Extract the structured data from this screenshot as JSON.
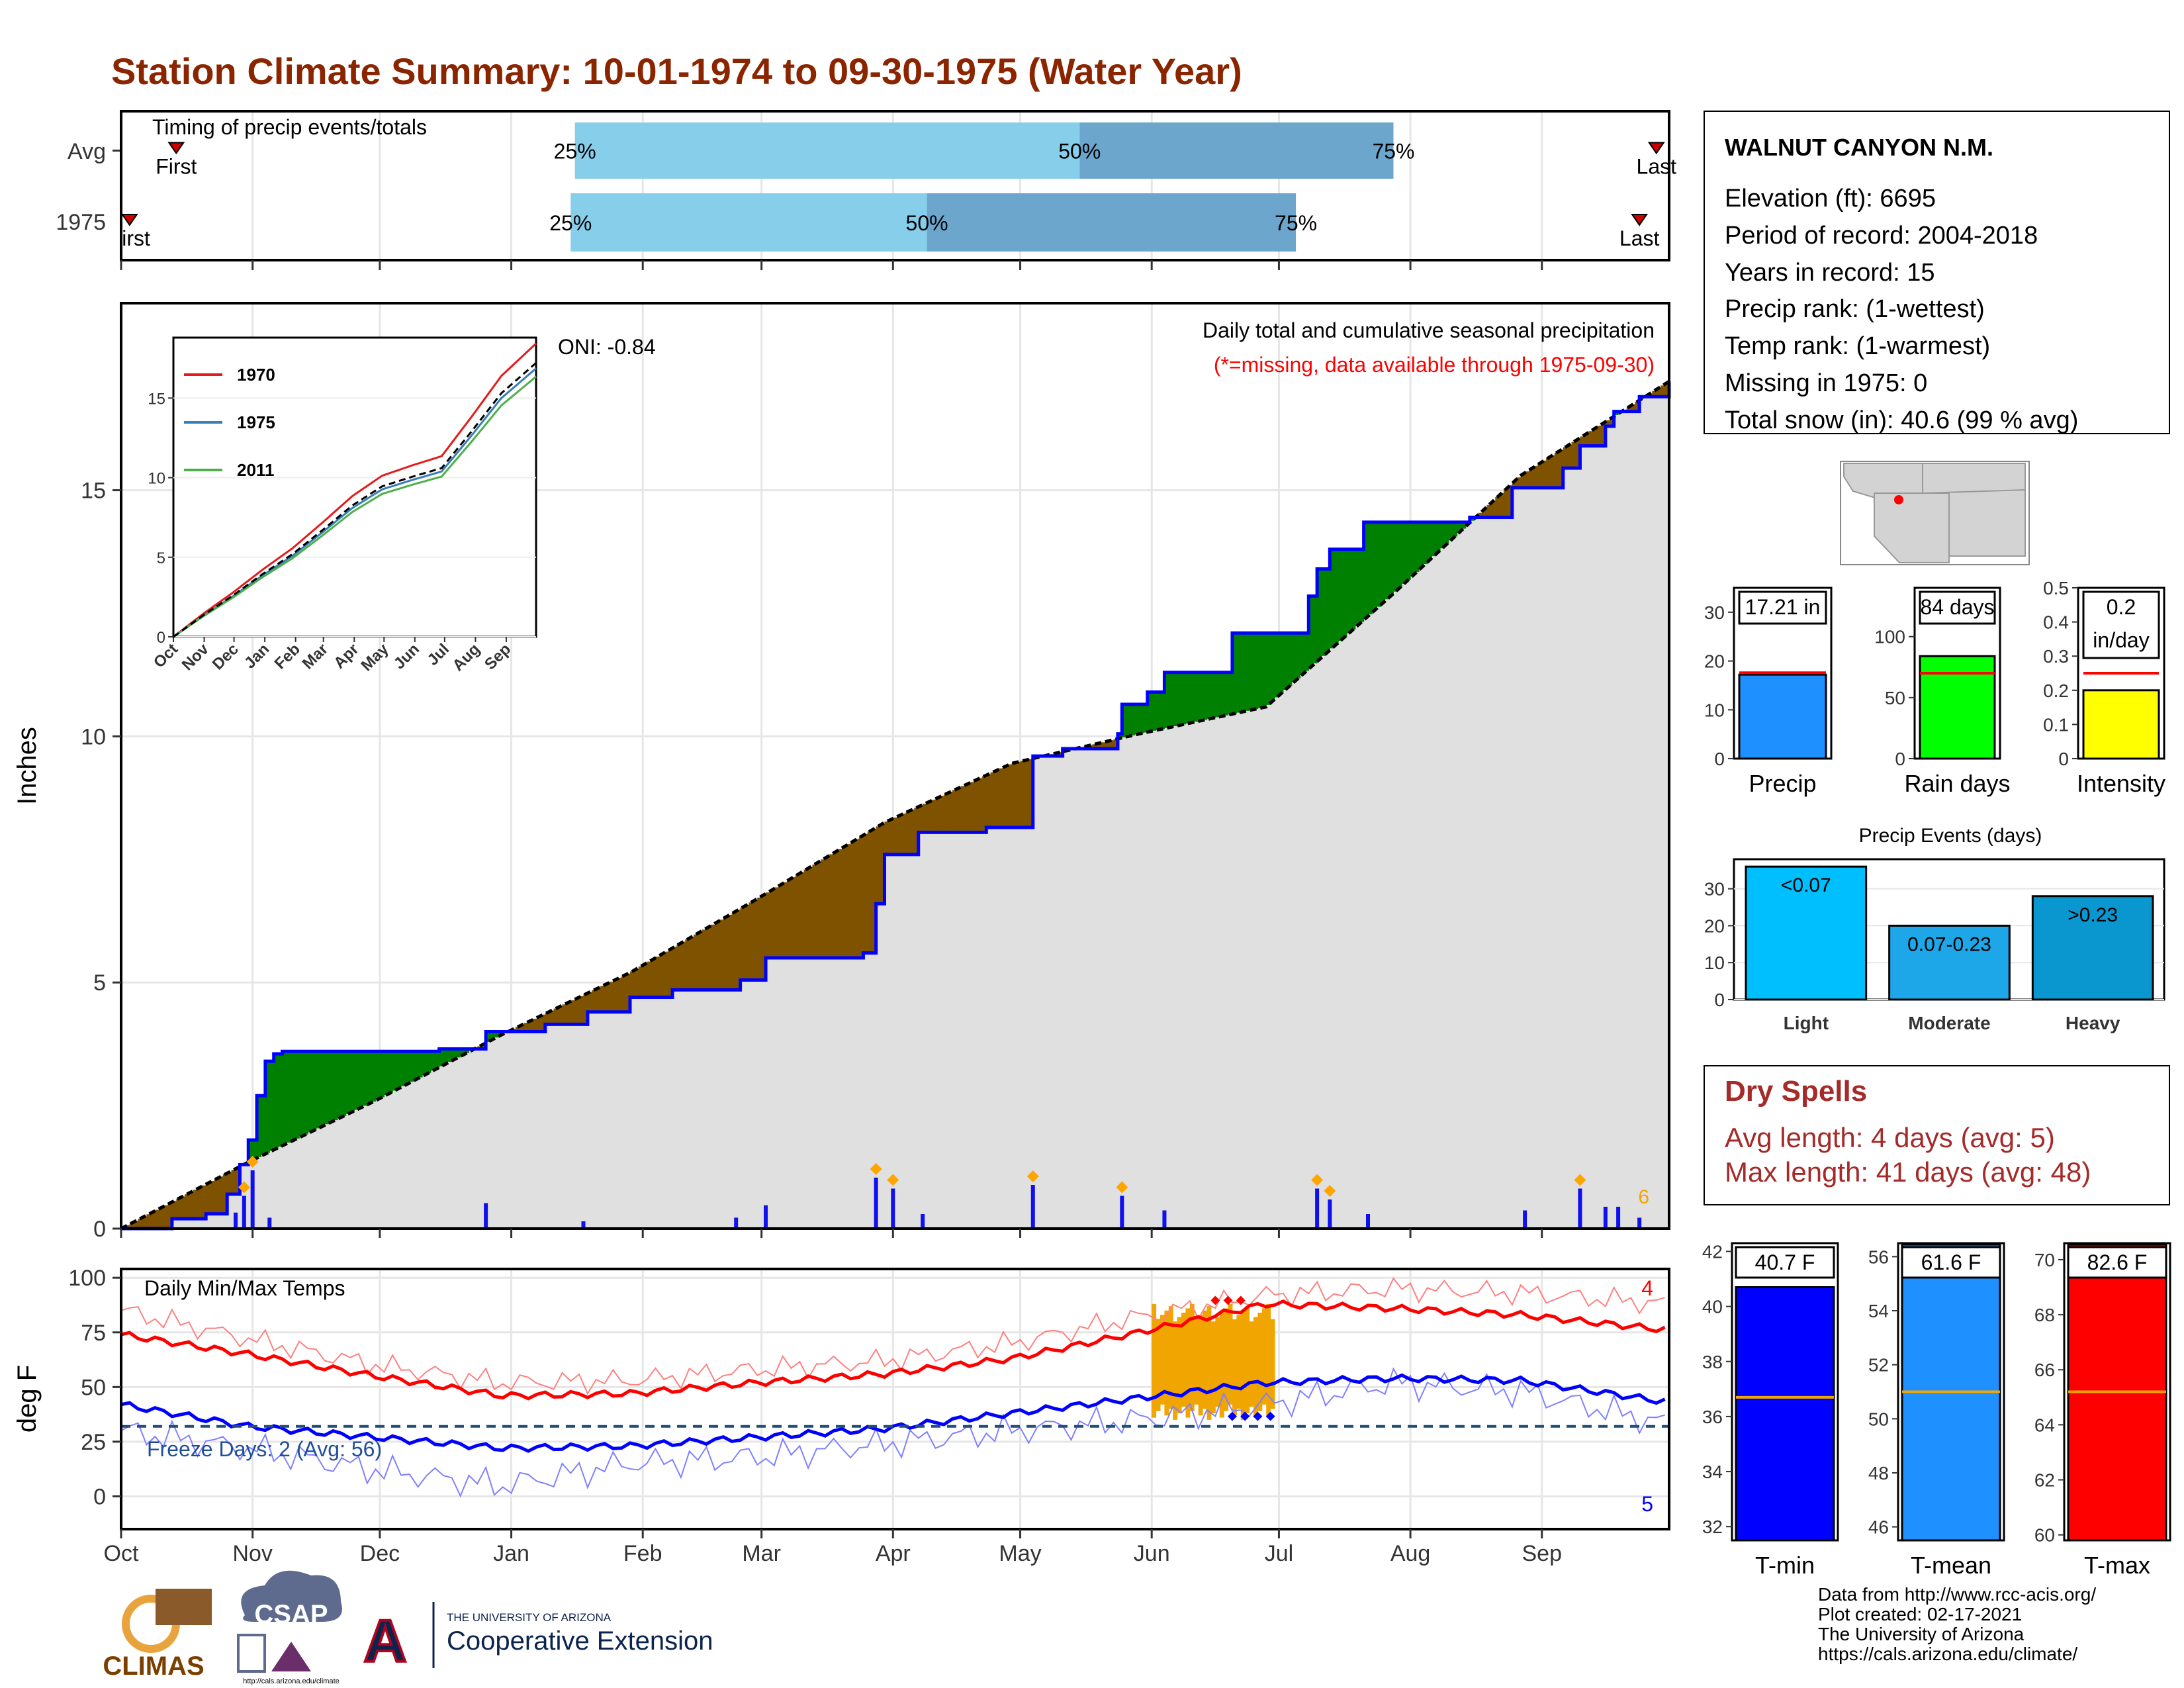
{
  "title": "Station Climate Summary: 10-01-1974 to 09-30-1975 (Water Year)",
  "colors": {
    "title": "#8B2500",
    "quart_light": "#87CEEB",
    "quart_dark": "#6CA6CD",
    "cum_fill": "#E0E0E0",
    "above_avg": "#008000",
    "below_avg": "#7F5200",
    "cum_line": "#0000FF",
    "tmax": "#FF0000",
    "tmin": "#0000FF",
    "missing_text": "#FF0000",
    "dry_spell_text": "#A52A2A",
    "hot_fill": "#F0A500"
  },
  "timing": {
    "label": "Timing of precip events/totals",
    "rows": [
      {
        "label": "Avg",
        "first_label": "First",
        "last_label": "Last",
        "first_day": 13,
        "last_day": 362,
        "q25_day": 107,
        "q50_day": 226,
        "q75_day": 300,
        "q25_label": "25%",
        "q50_label": "50%",
        "q75_label": "75%"
      },
      {
        "label": "1975",
        "first_label": "First",
        "last_label": "Last",
        "first_day": 2,
        "last_day": 358,
        "q25_day": 106,
        "q50_day": 190,
        "q75_day": 277,
        "q25_label": "25%",
        "q50_label": "50%",
        "q75_label": "75%"
      }
    ]
  },
  "precip_panel": {
    "ylabel": "Inches",
    "yticks": [
      0,
      5,
      10,
      15
    ],
    "oni": "ONI: -0.84",
    "subtitle": "Daily total and cumulative seasonal precipitation",
    "missing_note": "(*=missing, data available through 1975-09-30)",
    "count_label": "6",
    "inset": {
      "yticks": [
        0,
        5,
        10,
        15
      ],
      "months": [
        "Oct",
        "Nov",
        "Dec",
        "Jan",
        "Feb",
        "Mar",
        "Apr",
        "May",
        "Jun",
        "Jul",
        "Aug",
        "Sep"
      ],
      "legend": [
        "1970",
        "1975",
        "2011"
      ],
      "series_colors": [
        "#E41A1C",
        "#377EB8",
        "#4DAF4A"
      ]
    }
  },
  "temp_panel": {
    "ylabel": "deg F",
    "label": "Daily Min/Max Temps",
    "yticks": [
      0,
      25,
      50,
      75,
      100
    ],
    "freeze_label": "Freeze Days: 2 (Avg: 56)",
    "tmax_count": "4",
    "tmin_count": "5"
  },
  "months": [
    "Oct",
    "Nov",
    "Dec",
    "Jan",
    "Feb",
    "Mar",
    "Apr",
    "May",
    "Jun",
    "Jul",
    "Aug",
    "Sep"
  ],
  "station": {
    "name": "WALNUT CANYON N.M.",
    "lines": [
      "Elevation (ft): 6695",
      "Period of record: 2004-2018",
      "Years in record: 15",
      "Precip rank:  (1-wettest)",
      "Temp rank:  (1-warmest)",
      "Missing in 1975: 0",
      "Total snow (in): 40.6 (99 % avg)"
    ]
  },
  "mini_bars": [
    {
      "label": "Precip",
      "value_label": "17.21 in",
      "value": 17.21,
      "avg": 17.6,
      "ymax": 35,
      "yticks": [
        0,
        10,
        20,
        30
      ],
      "color": "#1E90FF"
    },
    {
      "label": "Rain days",
      "value_label": "84 days",
      "value": 84,
      "avg": 70,
      "ymax": 140,
      "yticks": [
        0,
        50,
        100
      ],
      "color": "#00FF00"
    },
    {
      "label": "Intensity",
      "value_label": "0.2\nin/day",
      "value": 0.2,
      "avg": 0.25,
      "ymax": 0.5,
      "yticks": [
        0.0,
        0.1,
        0.2,
        0.3,
        0.4,
        0.5
      ],
      "color": "#FFFF00"
    }
  ],
  "precip_events": {
    "title": "Precip Events (days)",
    "yticks": [
      0,
      10,
      20,
      30
    ],
    "bars": [
      {
        "category": "Light",
        "value": 36,
        "label": "<0.07",
        "color": "#00BFFF"
      },
      {
        "category": "Moderate",
        "value": 20,
        "label": "0.07-0.23",
        "color": "#1EA7E8"
      },
      {
        "category": "Heavy",
        "value": 28,
        "label": ">0.23",
        "color": "#0A97CF"
      }
    ],
    "ymax": 38
  },
  "dry_spells": {
    "title": "Dry Spells",
    "avg_line": "Avg length: 4 days (avg: 5)",
    "max_line": "Max length: 41 days (avg: 48)"
  },
  "temp_bars": [
    {
      "label": "T-min",
      "value_label": "40.7 F",
      "value": 40.7,
      "avg": 36.7,
      "ymin": 31.5,
      "ymax": 42.3,
      "yticks": [
        32,
        34,
        36,
        38,
        40,
        42
      ],
      "color": "#0000FF"
    },
    {
      "label": "T-mean",
      "value_label": "61.6 F",
      "value": 61.6,
      "avg": 51.0,
      "ymin": 45.5,
      "ymax": 56.5,
      "yticks": [
        46,
        48,
        50,
        52,
        54,
        56
      ],
      "color": "#1E90FF"
    },
    {
      "label": "T-max",
      "value_label": "82.6 F",
      "value": 82.6,
      "avg": 65.2,
      "ymin": 59.8,
      "ymax": 70.6,
      "yticks": [
        60,
        62,
        64,
        66,
        68,
        70
      ],
      "color": "#FF0000"
    }
  ],
  "footer": {
    "lines": [
      "Data from http://www.rcc-acis.org/",
      "Plot created: 02-17-2021",
      "The University of Arizona",
      "https://cals.arizona.edu/climate/"
    ],
    "climas": "CLIMAS",
    "csap": "CSAP",
    "csap_url": "http://cals.arizona.edu/climate",
    "ua_small": "THE UNIVERSITY OF ARIZONA",
    "ua_big": "Cooperative Extension",
    "ua_letter": "A"
  },
  "chart_data": {
    "type": "area",
    "title": "Daily total and cumulative seasonal precipitation",
    "ylabel": "Inches",
    "ylim": [
      0,
      18.8
    ],
    "cumulative_observed": {
      "day": [
        0,
        12,
        20,
        25,
        28,
        30,
        32,
        34,
        36,
        38,
        40,
        42,
        75,
        86,
        100,
        110,
        120,
        130,
        146,
        152,
        175,
        178,
        180,
        188,
        204,
        215,
        222,
        232,
        235,
        236,
        242,
        246,
        258,
        262,
        280,
        282,
        285,
        293,
        318,
        320,
        328,
        340,
        344,
        350,
        352,
        358,
        365
      ],
      "inches": [
        0,
        0.2,
        0.3,
        0.7,
        1.3,
        1.8,
        2.7,
        3.4,
        3.55,
        3.6,
        3.6,
        3.6,
        3.65,
        4.0,
        4.15,
        4.4,
        4.7,
        4.85,
        5.05,
        5.5,
        5.6,
        6.6,
        7.6,
        8.05,
        8.15,
        9.6,
        9.75,
        9.75,
        10.05,
        10.65,
        10.9,
        11.3,
        11.3,
        12.1,
        12.85,
        13.4,
        13.8,
        14.35,
        14.45,
        14.45,
        15.05,
        15.45,
        15.9,
        16.3,
        16.6,
        16.9,
        17.21
      ]
    },
    "cumulative_average": {
      "day": [
        0,
        30,
        60,
        90,
        120,
        150,
        180,
        210,
        240,
        270,
        300,
        330,
        365
      ],
      "inches": [
        0,
        1.35,
        2.6,
        3.95,
        5.2,
        6.7,
        8.25,
        9.45,
        10.05,
        10.6,
        12.9,
        15.3,
        17.21
      ]
    },
    "daily_events": [
      {
        "day": 27,
        "inches": 0.22
      },
      {
        "day": 29,
        "inches": 0.45
      },
      {
        "day": 31,
        "inches": 0.8
      },
      {
        "day": 35,
        "inches": 0.15
      },
      {
        "day": 86,
        "inches": 0.35
      },
      {
        "day": 109,
        "inches": 0.1
      },
      {
        "day": 145,
        "inches": 0.15
      },
      {
        "day": 152,
        "inches": 0.32
      },
      {
        "day": 178,
        "inches": 0.7
      },
      {
        "day": 182,
        "inches": 0.55
      },
      {
        "day": 189,
        "inches": 0.2
      },
      {
        "day": 215,
        "inches": 0.6
      },
      {
        "day": 236,
        "inches": 0.45
      },
      {
        "day": 246,
        "inches": 0.25
      },
      {
        "day": 282,
        "inches": 0.55
      },
      {
        "day": 285,
        "inches": 0.4
      },
      {
        "day": 294,
        "inches": 0.2
      },
      {
        "day": 331,
        "inches": 0.25
      },
      {
        "day": 344,
        "inches": 0.55
      },
      {
        "day": 350,
        "inches": 0.3
      },
      {
        "day": 353,
        "inches": 0.3
      },
      {
        "day": 358,
        "inches": 0.15
      }
    ],
    "temps": {
      "ylim": [
        -15,
        104
      ],
      "tmax_avg": {
        "day": [
          0,
          30,
          60,
          90,
          120,
          150,
          180,
          210,
          240,
          270,
          300,
          330,
          365
        ],
        "degF": [
          74,
          65,
          55,
          46,
          47,
          52,
          56,
          63,
          75,
          88,
          86,
          83,
          76
        ]
      },
      "tmax_daily": {
        "day": [
          0,
          30,
          60,
          90,
          120,
          150,
          180,
          210,
          240,
          270,
          300,
          330,
          365
        ],
        "degF": [
          85,
          72,
          60,
          52,
          53,
          58,
          62,
          70,
          82,
          92,
          95,
          93,
          88
        ]
      },
      "tmin_avg": {
        "day": [
          0,
          30,
          60,
          90,
          120,
          150,
          180,
          210,
          240,
          270,
          300,
          330,
          365
        ],
        "degF": [
          42,
          32,
          27,
          22,
          23,
          27,
          31,
          38,
          45,
          52,
          54,
          53,
          43
        ]
      },
      "tmin_daily": {
        "day": [
          0,
          30,
          60,
          90,
          120,
          150,
          180,
          210,
          240,
          270,
          300,
          330,
          365
        ],
        "degF": [
          30,
          22,
          12,
          5,
          15,
          18,
          24,
          30,
          35,
          42,
          52,
          48,
          33
        ]
      },
      "freeze_line": 32
    }
  }
}
